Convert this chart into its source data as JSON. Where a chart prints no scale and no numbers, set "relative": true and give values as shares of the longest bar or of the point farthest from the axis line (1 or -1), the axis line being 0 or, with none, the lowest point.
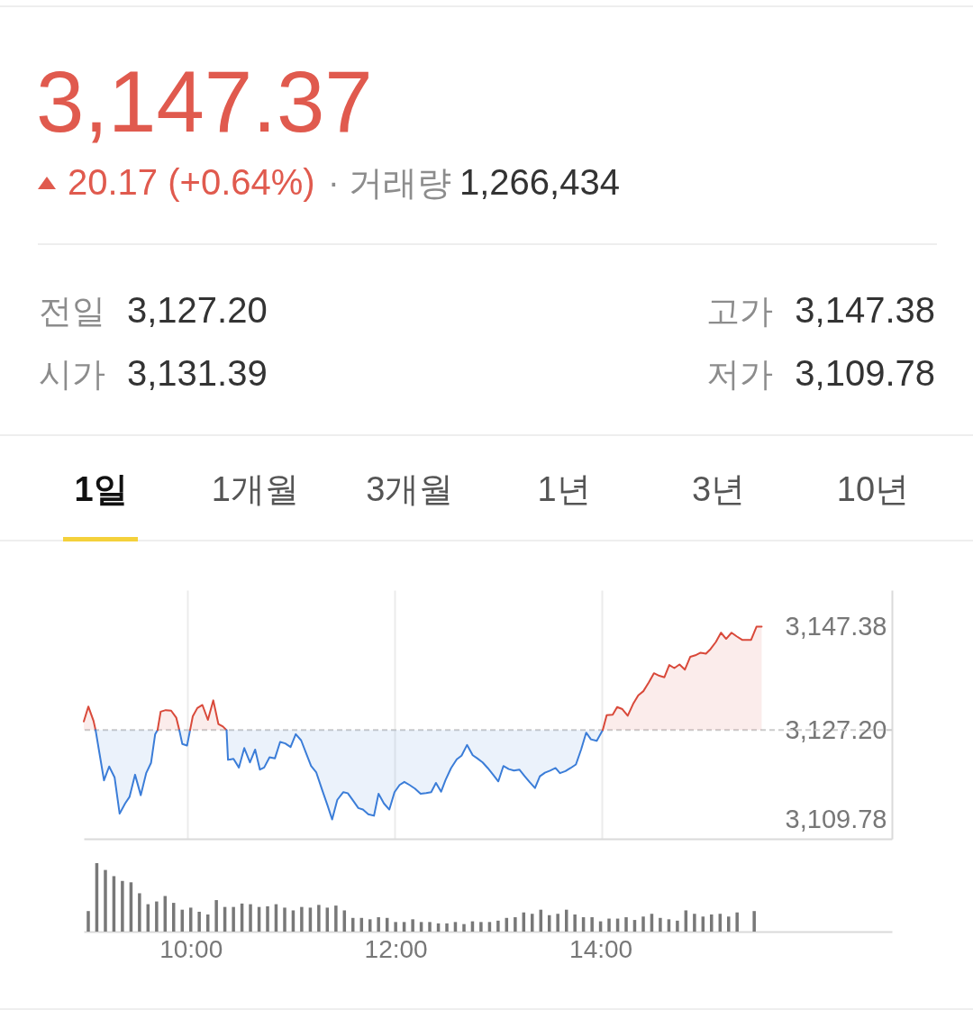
{
  "chart_data": [
    {
      "type": "other",
      "title": "3,147.37",
      "annotations": [
        "20.17 (+0.64%)",
        "· 거래량",
        "1,266,434",
        "전일",
        "3,127.20",
        "고가",
        "3,147.38",
        "시가",
        "3,131.39",
        "저가",
        "3,109.78",
        "1일",
        "1개월",
        "3개월",
        "1년",
        "3년",
        "10년"
      ]
    },
    {
      "type": "line",
      "series": [
        {
          "color": "#d9493a",
          "x": [
            9,
            9.044,
            9.094,
            9.114
          ],
          "values": [
            3128.9,
            3131.8,
            3129.0,
            3127.2
          ],
          "lower": [
            3127.2,
            3127.2,
            3127.2,
            3127.2
          ],
          "upper": [
            3128.9,
            3131.8,
            3129.0,
            3127.2
          ]
        },
        {
          "color": "#3b7dd8",
          "x": [
            9.114,
            9.152,
            9.195,
            9.245,
            9.297,
            9.346,
            9.399,
            9.442,
            9.495,
            9.55,
            9.602,
            9.649,
            9.689,
            9.712
          ],
          "values": [
            3127.2,
            3122.6,
            3117.4,
            3120.1,
            3118.0,
            3110.9,
            3112.9,
            3114.2,
            3118.5,
            3114.5,
            3118.8,
            3120.8,
            3126.4,
            3127.2
          ],
          "lower": [
            3127.2,
            3122.6,
            3117.4,
            3120.1,
            3118.0,
            3110.9,
            3112.9,
            3114.2,
            3118.5,
            3114.5,
            3118.8,
            3120.8,
            3126.4,
            3127.2
          ],
          "upper": [
            3127.2,
            3127.2,
            3127.2,
            3127.2,
            3127.2,
            3127.2,
            3127.2,
            3127.2,
            3127.2,
            3127.2,
            3127.2,
            3127.2,
            3127.2,
            3127.2
          ]
        },
        {
          "color": "#d9493a",
          "x": [
            9.712,
            9.742,
            9.791,
            9.843,
            9.893,
            9.922
          ],
          "values": [
            3127.2,
            3130.8,
            3131.1,
            3131.0,
            3129.6,
            3127.2
          ],
          "lower": [
            3127.2,
            3127.2,
            3127.2,
            3127.2,
            3127.2,
            3127.2
          ],
          "upper": [
            3127.2,
            3130.8,
            3131.1,
            3131.0,
            3129.6,
            3127.2
          ]
        },
        {
          "color": "#3b7dd8",
          "x": [
            9.922,
            9.951,
            9.997,
            10.026
          ],
          "values": [
            3127.2,
            3124.5,
            3124.2,
            3127.2
          ],
          "lower": [
            3127.2,
            3124.5,
            3124.2,
            3127.2
          ],
          "upper": [
            3127.2,
            3127.2,
            3127.2,
            3127.2
          ]
        },
        {
          "color": "#d9493a",
          "x": [
            10.026,
            10.052,
            10.096,
            10.145,
            10.198,
            10.25,
            10.299,
            10.343,
            10.378
          ],
          "values": [
            3127.2,
            3129.9,
            3131.5,
            3132.1,
            3129.2,
            3133.0,
            3128.4,
            3127.9,
            3127.2
          ],
          "lower": [
            3127.2,
            3127.2,
            3127.2,
            3127.2,
            3127.2,
            3127.2,
            3127.2,
            3127.2,
            3127.2
          ],
          "upper": [
            3127.2,
            3129.9,
            3131.5,
            3132.1,
            3129.2,
            3133.0,
            3128.4,
            3127.9,
            3127.2
          ]
        },
        {
          "color": "#3b7dd8",
          "x": [
            10.378,
            10.392,
            10.445,
            10.497,
            10.549,
            10.604,
            10.654,
            10.7,
            10.741,
            10.793,
            10.845,
            10.895,
            10.944,
            10.996,
            11.046,
            11.098,
            11.148,
            11.194,
            11.243,
            11.301,
            11.351,
            11.397,
            11.447,
            11.505,
            11.548,
            11.598,
            11.65,
            11.694,
            11.746,
            11.801,
            11.845,
            11.897,
            11.949,
            11.999,
            12.048,
            12.094,
            12.144,
            12.196,
            12.251,
            12.304,
            12.353,
            12.399,
            12.449,
            12.492,
            12.545,
            12.6,
            12.646,
            12.699,
            12.754,
            12.797,
            12.85,
            12.899,
            12.951,
            13.001,
            13.05,
            13.102,
            13.152,
            13.204,
            13.256,
            13.306,
            13.355,
            13.402,
            13.451,
            13.5,
            13.553,
            13.596,
            13.649,
            13.698,
            13.75,
            13.8,
            13.849,
            13.895,
            13.951,
            14.009
          ],
          "values": [
            3127.2,
            3121.4,
            3121.6,
            3119.9,
            3123.7,
            3120.9,
            3123.4,
            3119.5,
            3119.9,
            3121.9,
            3121.7,
            3124.9,
            3124.6,
            3123.9,
            3126.4,
            3125.2,
            3122.6,
            3120.2,
            3119.0,
            3115.5,
            3112.6,
            3109.78,
            3113.6,
            3115.1,
            3114.9,
            3113.5,
            3112.0,
            3111.7,
            3110.8,
            3110.5,
            3114.8,
            3112.9,
            3111.7,
            3115.1,
            3116.5,
            3117.1,
            3116.5,
            3115.8,
            3114.8,
            3114.9,
            3115.1,
            3116.9,
            3115.2,
            3117.5,
            3119.8,
            3121.5,
            3122.2,
            3124.3,
            3122.3,
            3121.7,
            3120.9,
            3119.8,
            3118.5,
            3117.2,
            3120.2,
            3119.6,
            3119.3,
            3119.5,
            3118.2,
            3117.0,
            3115.9,
            3118.2,
            3118.9,
            3119.3,
            3119.8,
            3118.8,
            3119.2,
            3119.8,
            3120.5,
            3123.4,
            3126.7,
            3125.4,
            3125.1,
            3127.2
          ],
          "lower": [
            3127.2,
            3121.4,
            3121.6,
            3119.9,
            3123.7,
            3120.9,
            3123.4,
            3119.5,
            3119.9,
            3121.9,
            3121.7,
            3124.9,
            3124.6,
            3123.9,
            3126.4,
            3125.2,
            3122.6,
            3120.2,
            3119.0,
            3115.5,
            3112.6,
            3109.78,
            3113.6,
            3115.1,
            3114.9,
            3113.5,
            3112.0,
            3111.7,
            3110.8,
            3110.5,
            3114.8,
            3112.9,
            3111.7,
            3115.1,
            3116.5,
            3117.1,
            3116.5,
            3115.8,
            3114.8,
            3114.9,
            3115.1,
            3116.9,
            3115.2,
            3117.5,
            3119.8,
            3121.5,
            3122.2,
            3124.3,
            3122.3,
            3121.7,
            3120.9,
            3119.8,
            3118.5,
            3117.2,
            3120.2,
            3119.6,
            3119.3,
            3119.5,
            3118.2,
            3117.0,
            3115.9,
            3118.2,
            3118.9,
            3119.3,
            3119.8,
            3118.8,
            3119.2,
            3119.8,
            3120.5,
            3123.4,
            3126.7,
            3125.4,
            3125.1,
            3127.2
          ],
          "upper": [
            3127.2,
            3127.2,
            3127.2,
            3127.2,
            3127.2,
            3127.2,
            3127.2,
            3127.2,
            3127.2,
            3127.2,
            3127.2,
            3127.2,
            3127.2,
            3127.2,
            3127.2,
            3127.2,
            3127.2,
            3127.2,
            3127.2,
            3127.2,
            3127.2,
            3127.2,
            3127.2,
            3127.2,
            3127.2,
            3127.2,
            3127.2,
            3127.2,
            3127.2,
            3127.2,
            3127.2,
            3127.2,
            3127.2,
            3127.2,
            3127.2,
            3127.2,
            3127.2,
            3127.2,
            3127.2,
            3127.2,
            3127.2,
            3127.2,
            3127.2,
            3127.2,
            3127.2,
            3127.2,
            3127.2,
            3127.2,
            3127.2,
            3127.2,
            3127.2,
            3127.2,
            3127.2,
            3127.2,
            3127.2,
            3127.2,
            3127.2,
            3127.2,
            3127.2,
            3127.2,
            3127.2,
            3127.2,
            3127.2,
            3127.2,
            3127.2,
            3127.2,
            3127.2,
            3127.2,
            3127.2,
            3127.2,
            3127.2,
            3127.2,
            3127.2,
            3127.2
          ]
        },
        {
          "color": "#d9493a",
          "x": [
            14.009,
            14.047,
            14.105,
            14.148,
            14.198,
            14.25,
            14.302,
            14.352,
            14.401,
            14.453,
            14.503,
            14.555,
            14.604,
            14.651,
            14.7,
            14.75,
            14.802,
            14.854,
            14.903,
            14.953,
            15.005,
            15.049,
            15.101,
            15.15,
            15.2,
            15.252,
            15.301,
            15.354,
            15.441,
            15.493,
            15.543
          ],
          "values": [
            3127.2,
            3130.1,
            3130.2,
            3131.7,
            3131.3,
            3130.0,
            3132.3,
            3134.0,
            3134.8,
            3136.5,
            3138.3,
            3137.8,
            3137.5,
            3139.9,
            3139.3,
            3140.0,
            3139.0,
            3141.5,
            3141.8,
            3142.3,
            3142.1,
            3143.0,
            3144.4,
            3146.2,
            3145.0,
            3146.2,
            3145.5,
            3144.8,
            3144.8,
            3147.38,
            3147.37
          ],
          "lower": [
            3127.2,
            3127.2,
            3127.2,
            3127.2,
            3127.2,
            3127.2,
            3127.2,
            3127.2,
            3127.2,
            3127.2,
            3127.2,
            3127.2,
            3127.2,
            3127.2,
            3127.2,
            3127.2,
            3127.2,
            3127.2,
            3127.2,
            3127.2,
            3127.2,
            3127.2,
            3127.2,
            3127.2,
            3127.2,
            3127.2,
            3127.2,
            3127.2,
            3127.2,
            3127.2,
            3127.2
          ],
          "upper": [
            3127.2,
            3130.1,
            3130.2,
            3131.7,
            3131.3,
            3130.0,
            3132.3,
            3134.0,
            3134.8,
            3136.5,
            3138.3,
            3137.8,
            3137.5,
            3139.9,
            3139.3,
            3140.0,
            3139.0,
            3141.5,
            3141.8,
            3142.3,
            3142.1,
            3143.0,
            3144.4,
            3146.2,
            3145.0,
            3146.2,
            3145.5,
            3144.8,
            3144.8,
            3147.38,
            3147.37
          ]
        }
      ],
      "xlim": [
        9,
        16.8
      ],
      "xticks": [
        10,
        12,
        14
      ],
      "ylim": [
        3106,
        3154.5
      ],
      "yticks": [
        {
          "value": 3109.78,
          "label": "3,109.78"
        },
        {
          "value": 3127.2,
          "label": "3,127.20"
        },
        {
          "value": 3147.38,
          "label": "3,147.38"
        }
      ],
      "grid": "x",
      "tick_labels": "y",
      "ref_lines": [
        {
          "axis": "y",
          "value": 3127.2,
          "color": "#cccccc",
          "line_style": "dashed"
        }
      ]
    },
    {
      "type": "bar",
      "relative": true,
      "color": "#787878",
      "x": [
        9,
        9.083,
        9.167,
        9.25,
        9.333,
        9.417,
        9.5,
        9.583,
        9.667,
        9.75,
        9.833,
        9.917,
        10,
        10.083,
        10.167,
        10.25,
        10.333,
        10.417,
        10.5,
        10.583,
        10.667,
        10.75,
        10.833,
        10.917,
        11,
        11.083,
        11.167,
        11.25,
        11.333,
        11.417,
        11.5,
        11.583,
        11.667,
        11.75,
        11.833,
        11.917,
        12,
        12.083,
        12.167,
        12.25,
        12.333,
        12.417,
        12.5,
        12.583,
        12.667,
        12.75,
        12.833,
        12.917,
        13,
        13.083,
        13.167,
        13.25,
        13.333,
        13.417,
        13.5,
        13.583,
        13.667,
        13.75,
        13.833,
        13.917,
        14,
        14.083,
        14.167,
        14.25,
        14.333,
        14.417,
        14.5,
        14.583,
        14.667,
        14.75,
        14.833,
        14.917,
        15,
        15.083,
        15.167,
        15.25,
        15.333,
        15.5
      ],
      "values": [
        0.3,
        1.0,
        0.9,
        0.81,
        0.74,
        0.72,
        0.56,
        0.4,
        0.44,
        0.52,
        0.42,
        0.32,
        0.35,
        0.29,
        0.25,
        0.46,
        0.36,
        0.36,
        0.41,
        0.4,
        0.36,
        0.37,
        0.4,
        0.35,
        0.31,
        0.36,
        0.35,
        0.39,
        0.35,
        0.38,
        0.31,
        0.2,
        0.2,
        0.18,
        0.21,
        0.2,
        0.14,
        0.14,
        0.18,
        0.14,
        0.14,
        0.12,
        0.12,
        0.14,
        0.11,
        0.15,
        0.14,
        0.14,
        0.16,
        0.2,
        0.21,
        0.28,
        0.26,
        0.32,
        0.24,
        0.26,
        0.32,
        0.25,
        0.21,
        0.21,
        0.15,
        0.19,
        0.19,
        0.21,
        0.17,
        0.22,
        0.26,
        0.2,
        0.18,
        0.16,
        0.31,
        0.26,
        0.22,
        0.25,
        0.26,
        0.22,
        0.28,
        0.3
      ],
      "xlim": [
        9,
        16.8
      ],
      "xticks": [
        {
          "value": 10,
          "label": "10:00"
        },
        {
          "value": 12,
          "label": "12:00"
        },
        {
          "value": 14,
          "label": "14:00"
        }
      ],
      "tick_labels": "x"
    }
  ]
}
